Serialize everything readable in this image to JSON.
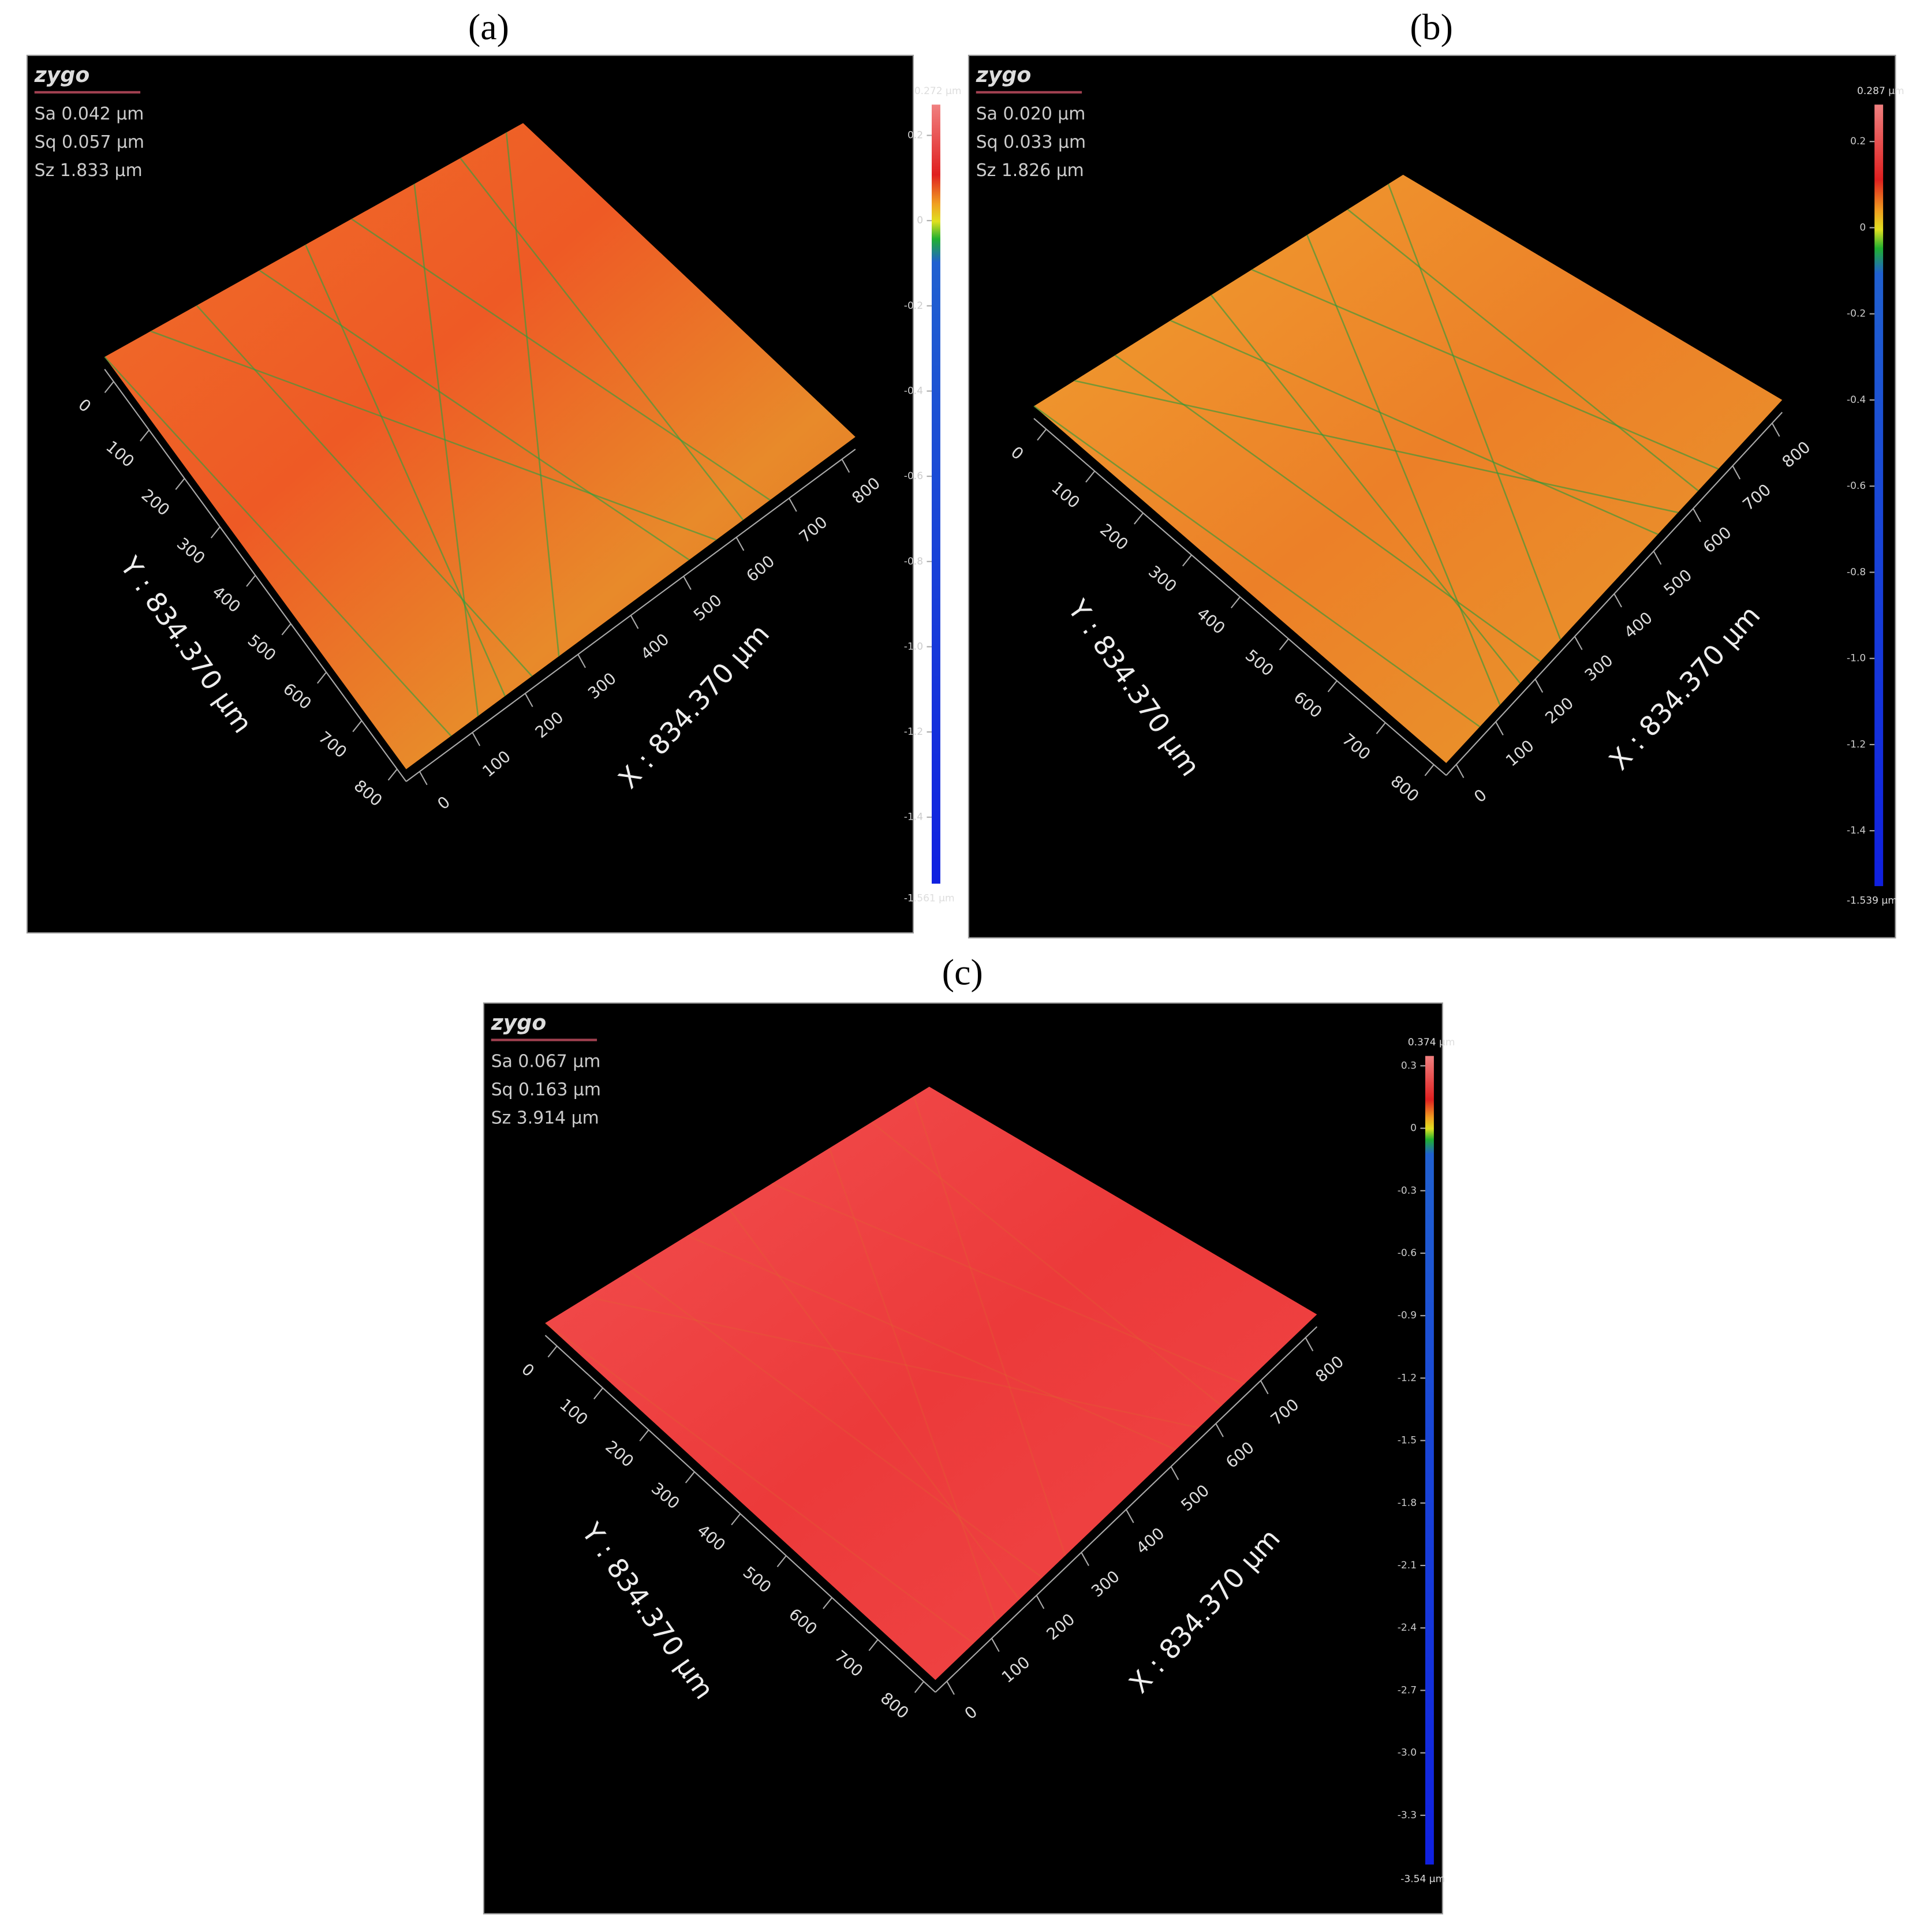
{
  "panels": [
    {
      "label": "(a)",
      "logo": "zygo",
      "stats": [
        "Sa 0.042 µm",
        "Sq 0.057 µm",
        "Sz 1.833 µm"
      ],
      "colorbar": {
        "top_label": "0.272 µm",
        "bottom_label": "-1.561 µm",
        "ticks": [
          0.2,
          0,
          -0.2,
          -0.4,
          -0.6,
          -0.8,
          {
            "value": -1,
            "label": "-1.0"
          },
          -1.2,
          -1.4
        ]
      },
      "x_axis": {
        "title": "X : 834.370 µm",
        "ticks": [
          0,
          100,
          200,
          300,
          400,
          500,
          600,
          700,
          800
        ]
      },
      "y_axis": {
        "title": "Y : 834.370 µm",
        "ticks": [
          0,
          100,
          200,
          300,
          400,
          500,
          600,
          700,
          800
        ]
      }
    },
    {
      "label": "(b)",
      "logo": "zygo",
      "stats": [
        "Sa 0.020 µm",
        "Sq 0.033 µm",
        "Sz 1.826 µm"
      ],
      "colorbar": {
        "top_label": "0.287 µm",
        "bottom_label": "-1.539 µm",
        "ticks": [
          0.2,
          0,
          -0.2,
          -0.4,
          -0.6,
          -0.8,
          {
            "value": -1,
            "label": "-1.0"
          },
          -1.2,
          -1.4
        ]
      },
      "x_axis": {
        "title": "X : 834.370 µm",
        "ticks": [
          0,
          100,
          200,
          300,
          400,
          500,
          600,
          700,
          800
        ]
      },
      "y_axis": {
        "title": "Y : 834.370 µm",
        "ticks": [
          0,
          100,
          200,
          300,
          400,
          500,
          600,
          700,
          800
        ]
      }
    },
    {
      "label": "(c)",
      "logo": "zygo",
      "stats": [
        "Sa 0.067 µm",
        "Sq 0.163 µm",
        "Sz 3.914 µm"
      ],
      "colorbar": {
        "top_label": "0.374 µm",
        "bottom_label": "-3.54 µm",
        "ticks": [
          0.3,
          0,
          -0.3,
          -0.6,
          -0.9,
          -1.2,
          -1.5,
          -1.8,
          -2.1,
          -2.4,
          -2.7,
          {
            "value": -3,
            "label": "-3.0"
          },
          -3.3
        ]
      },
      "x_axis": {
        "title": "X : 834.370 µm",
        "ticks": [
          0,
          100,
          200,
          300,
          400,
          500,
          600,
          700,
          800
        ]
      },
      "y_axis": {
        "title": "Y : 834.370 µm",
        "ticks": [
          0,
          100,
          200,
          300,
          400,
          500,
          600,
          700,
          800
        ]
      }
    }
  ]
}
